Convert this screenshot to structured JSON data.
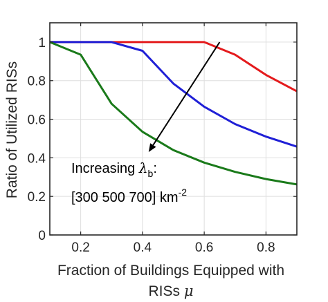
{
  "chart_data": {
    "type": "line",
    "title": "",
    "xlabel_lines": [
      "Fraction of Buildings Equipped with",
      "RISs"
    ],
    "xlabel_symbol": "μ",
    "ylabel": "Ratio of Utilized RISs",
    "xlim": [
      0.1,
      0.9
    ],
    "ylim": [
      0,
      1.1
    ],
    "xticks": [
      0.2,
      0.4,
      0.6,
      0.8
    ],
    "xtick_labels": [
      "0.2",
      "0.4",
      "0.6",
      "0.8"
    ],
    "yticks": [
      0,
      0.2,
      0.4,
      0.6,
      0.8,
      1
    ],
    "ytick_labels": [
      "0",
      "0.2",
      "0.4",
      "0.6",
      "0.8",
      "1"
    ],
    "grid": true,
    "x": [
      0.1,
      0.2,
      0.3,
      0.4,
      0.5,
      0.6,
      0.7,
      0.8,
      0.9
    ],
    "series": [
      {
        "color": "#e41a1c",
        "values": [
          1.0,
          1.0,
          1.0,
          1.0,
          1.0,
          1.0,
          0.935,
          0.83,
          0.745
        ]
      },
      {
        "color": "#1f1fd6",
        "values": [
          1.0,
          1.0,
          1.0,
          0.955,
          0.785,
          0.665,
          0.575,
          0.51,
          0.458
        ]
      },
      {
        "color": "#1a7a1a",
        "values": [
          1.0,
          0.935,
          0.68,
          0.535,
          0.44,
          0.375,
          0.327,
          0.29,
          0.262
        ]
      }
    ],
    "annotation": {
      "line1_prefix": "Increasing ",
      "line1_symbol": "λ",
      "line1_subscript": "b",
      "line1_suffix": ":",
      "line2_text": "[300 500 700] km",
      "line2_superscript": "-2",
      "arrow_from": [
        0.65,
        1.0
      ],
      "arrow_to": [
        0.42,
        0.43
      ]
    }
  }
}
